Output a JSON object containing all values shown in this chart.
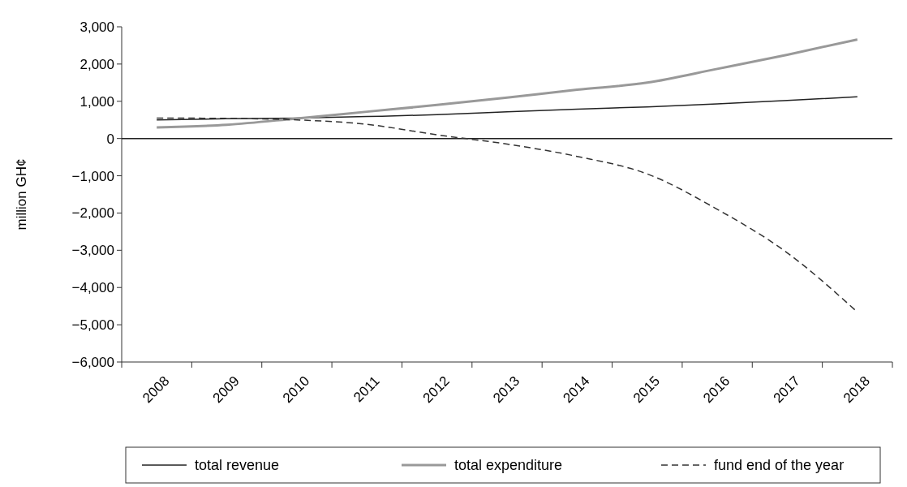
{
  "chart_data": {
    "type": "line",
    "ylabel": "million GH¢",
    "categories": [
      "2008",
      "2009",
      "2010",
      "2011",
      "2012",
      "2013",
      "2014",
      "2015",
      "2016",
      "2017",
      "2018"
    ],
    "series": [
      {
        "name": "total revenue",
        "color": "#222222",
        "line_style": "solid",
        "values": [
          500,
          530,
          550,
          590,
          640,
          720,
          790,
          850,
          930,
          1020,
          1120
        ]
      },
      {
        "name": "total expenditure",
        "color": "#999999",
        "line_style": "solid",
        "values": [
          300,
          370,
          540,
          720,
          900,
          1100,
          1310,
          1500,
          1870,
          2250,
          2660
        ]
      },
      {
        "name": "fund end of the year",
        "color": "#333333",
        "line_style": "dashed",
        "values": [
          550,
          540,
          500,
          380,
          100,
          -150,
          -480,
          -950,
          -1900,
          -3070,
          -4660
        ]
      }
    ],
    "ylim": [
      -6000,
      3000
    ],
    "yticks": [
      {
        "value": -6000,
        "label": "−6,000"
      },
      {
        "value": -5000,
        "label": "−5,000"
      },
      {
        "value": -4000,
        "label": "−4,000"
      },
      {
        "value": -3000,
        "label": "−3,000"
      },
      {
        "value": -2000,
        "label": "−2,000"
      },
      {
        "value": -1000,
        "label": "−1,000"
      },
      0,
      {
        "value": 1000,
        "label": "1,000"
      },
      {
        "value": 2000,
        "label": "2,000"
      },
      {
        "value": 3000,
        "label": "3,000"
      }
    ],
    "ref_lines": [
      {
        "axis": "y",
        "value": 0,
        "color": "#222222"
      }
    ],
    "grid": false,
    "legend": "bottom"
  }
}
